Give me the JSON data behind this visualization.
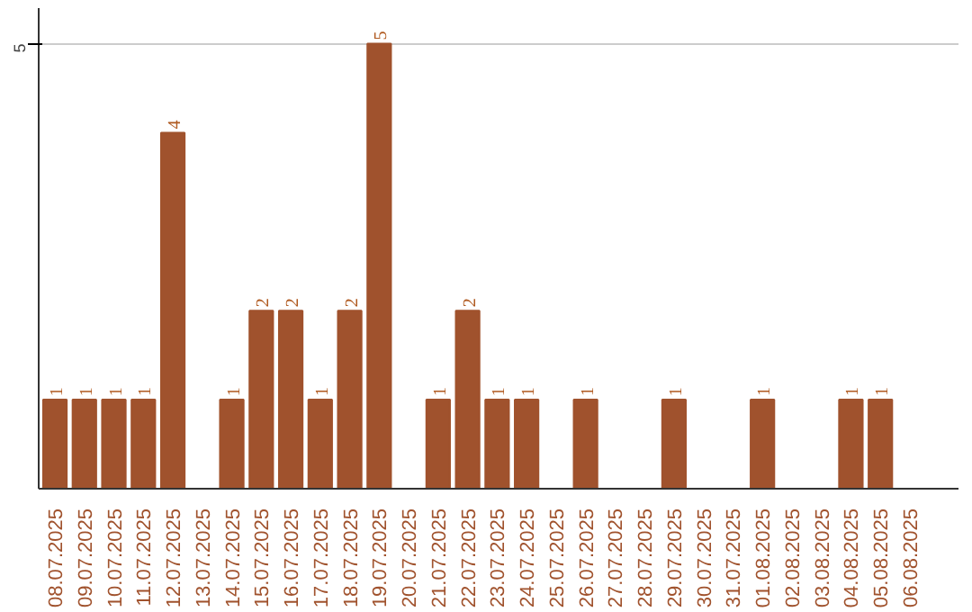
{
  "chart_data": {
    "type": "bar",
    "categories": [
      "08.07.2025",
      "09.07.2025",
      "10.07.2025",
      "11.07.2025",
      "12.07.2025",
      "13.07.2025",
      "14.07.2025",
      "15.07.2025",
      "16.07.2025",
      "17.07.2025",
      "18.07.2025",
      "19.07.2025",
      "20.07.2025",
      "21.07.2025",
      "22.07.2025",
      "23.07.2025",
      "24.07.2025",
      "25.07.2025",
      "26.07.2025",
      "27.07.2025",
      "28.07.2025",
      "29.07.2025",
      "30.07.2025",
      "31.07.2025",
      "01.08.2025",
      "02.08.2025",
      "03.08.2025",
      "04.08.2025",
      "05.08.2025",
      "06.08.2025"
    ],
    "values": [
      1,
      1,
      1,
      1,
      4,
      null,
      1,
      2,
      2,
      1,
      2,
      5,
      null,
      1,
      2,
      1,
      1,
      null,
      1,
      null,
      null,
      1,
      null,
      null,
      1,
      null,
      null,
      1,
      1,
      null
    ],
    "color": "#a0522d",
    "ylim": [
      0,
      5.4
    ],
    "yticks": [
      5
    ],
    "grid": "y",
    "data_labels": true
  }
}
